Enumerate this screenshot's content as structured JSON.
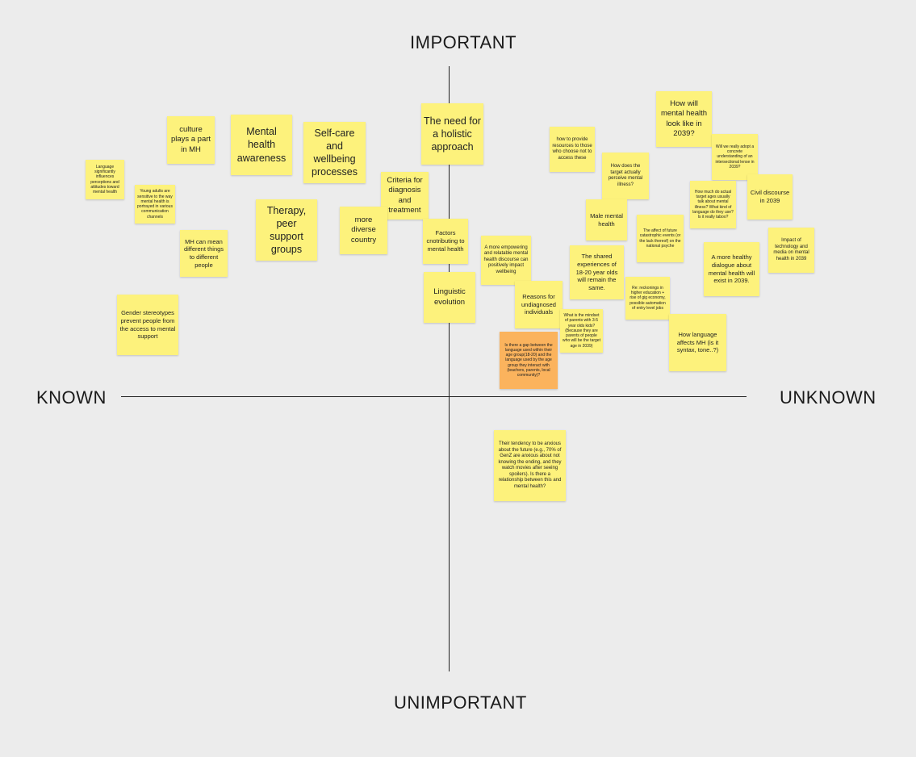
{
  "colors": {
    "background": "#ececec",
    "sticky_yellow": "#fdf27c",
    "sticky_orange": "#fbb35d",
    "axis": "#222222"
  },
  "axes": {
    "top": "IMPORTANT",
    "bottom": "UNIMPORTANT",
    "left": "KNOWN",
    "right": "UNKNOWN"
  },
  "notes": [
    {
      "id": "lang-sig",
      "color": "yellow",
      "text": "Language significantly influences perceptions and attitudes toward mental health"
    },
    {
      "id": "young",
      "color": "yellow",
      "text": "Young adults are sensitive to the way mental health is portrayed in various communication channels"
    },
    {
      "id": "culture",
      "color": "yellow",
      "text": "culture plays a part in MH"
    },
    {
      "id": "mh-aware",
      "color": "yellow",
      "text": "Mental health awareness"
    },
    {
      "id": "selfcare",
      "color": "yellow",
      "text": "Self-care and wellbeing processes"
    },
    {
      "id": "therapy",
      "color": "yellow",
      "text": "Therapy, peer support groups"
    },
    {
      "id": "mh-means",
      "color": "yellow",
      "text": "MH can mean different things to different people"
    },
    {
      "id": "gender",
      "color": "yellow",
      "text": "Gender stereotypes prevent people from the access to mental support"
    },
    {
      "id": "criteria",
      "color": "yellow",
      "text": "Criteria for diagnosis and treatment"
    },
    {
      "id": "diverse",
      "color": "yellow",
      "text": "more diverse country"
    },
    {
      "id": "holistic",
      "color": "yellow",
      "text": "The need for a holistic approach"
    },
    {
      "id": "factors",
      "color": "yellow",
      "text": "Factors cnotributing to mental health"
    },
    {
      "id": "linguistic",
      "color": "yellow",
      "text": "Linguistic evolution"
    },
    {
      "id": "empower",
      "color": "yellow",
      "text": "A more empowering and relatable mental health discourse can positively impact wellbeing"
    },
    {
      "id": "reasons",
      "color": "yellow",
      "text": "Reasons for undiagnosed individuals"
    },
    {
      "id": "gap",
      "color": "orange",
      "text": "Is there a gap between the language used within their age group(18-20) and the language used by the age group they interact with (teachers, parents, local community)?"
    },
    {
      "id": "mindset",
      "color": "yellow",
      "text": "What is the mindset of parents with 3-5 year olds kids? (Because they are parents of people who will be the target age in 2039)"
    },
    {
      "id": "provide",
      "color": "yellow",
      "text": "how to provide resources to those who choose not to access these"
    },
    {
      "id": "target-per",
      "color": "yellow",
      "text": "How does the target actually perceive mental illness?"
    },
    {
      "id": "male",
      "color": "yellow",
      "text": "Male mental health"
    },
    {
      "id": "shared",
      "color": "yellow",
      "text": "The shared experiences of 18-20 year olds will remain the same."
    },
    {
      "id": "catastrophe",
      "color": "yellow",
      "text": "The affect of future catastrophic events (or the lack thereof) on the national psyche"
    },
    {
      "id": "reckonings",
      "color": "yellow",
      "text": "Re: reckonings in higher education + rise of gig economy, possible automation of entry level jobs"
    },
    {
      "id": "how-mh",
      "color": "yellow",
      "text": "How will mental health look like in 2039?"
    },
    {
      "id": "really",
      "color": "yellow",
      "text": "Will we really adopt a concrete understanding of an intersectional lense in 2039?"
    },
    {
      "id": "how-much",
      "color": "yellow",
      "text": "How much do actual target ages usually talk about mental illness? What kind of language do they use? Is it really taboo?"
    },
    {
      "id": "civil",
      "color": "yellow",
      "text": "Civil discourse in 2039"
    },
    {
      "id": "impact",
      "color": "yellow",
      "text": "Impact of technology and media on mental health in 2039"
    },
    {
      "id": "healthy",
      "color": "yellow",
      "text": "A more healthy dialogue about mental health will exist in 2039."
    },
    {
      "id": "how-lang",
      "color": "yellow",
      "text": "How language affects MH (is it syntax, tone..?)"
    },
    {
      "id": "anxious",
      "color": "yellow",
      "text": "Their tendency to be anxious about the future (e.g., 70% of GenZ are anxious about not knowing the ending, and they watch movies after seeing spoilers). Is there a relationship between this and mental health?"
    }
  ]
}
